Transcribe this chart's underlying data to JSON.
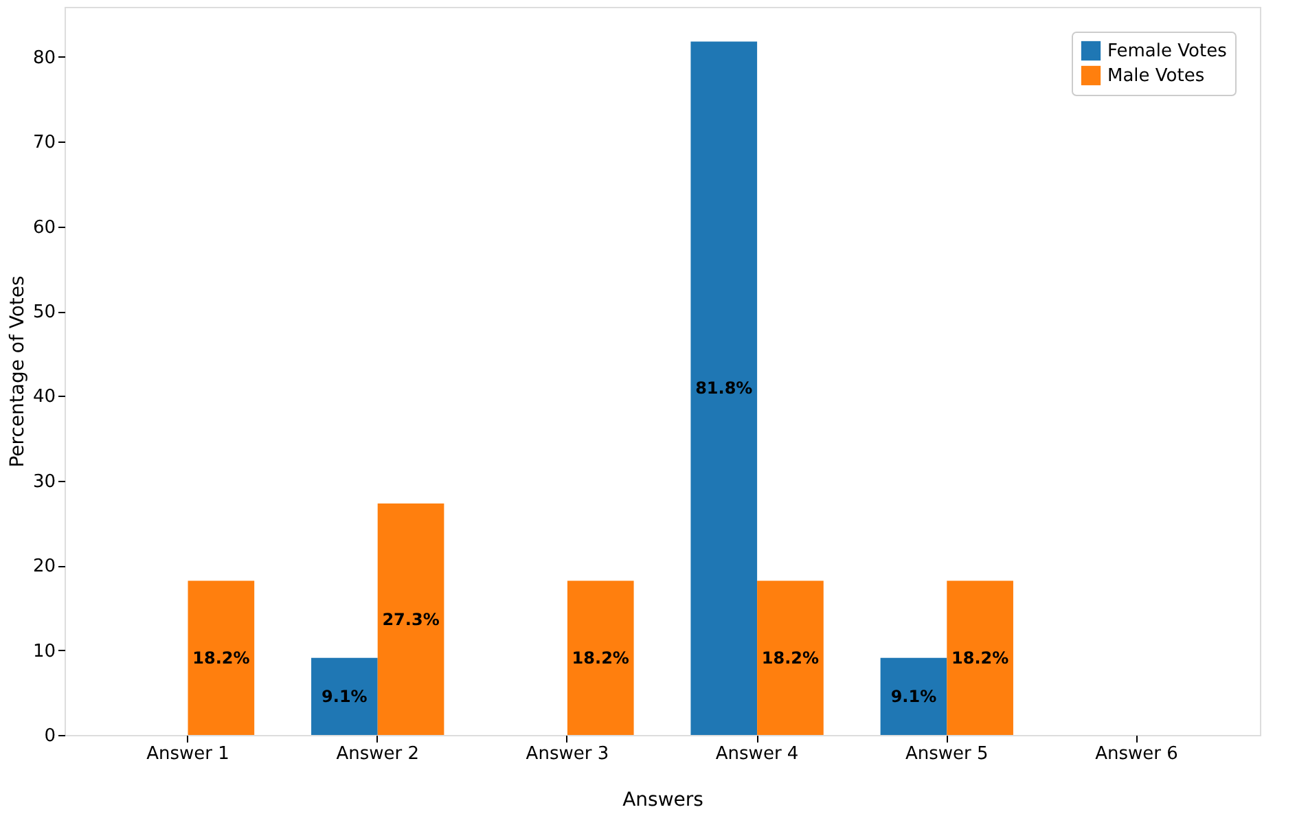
{
  "chart_data": {
    "type": "bar",
    "xlabel": "Answers",
    "ylabel": "Percentage of Votes",
    "categories": [
      "Answer 1",
      "Answer 2",
      "Answer 3",
      "Answer 4",
      "Answer 5",
      "Answer 6"
    ],
    "series": [
      {
        "name": "Female Votes",
        "color": "#1f77b4",
        "values": [
          0,
          9.1,
          0,
          81.8,
          9.1,
          0
        ],
        "value_labels": [
          null,
          "9.1%",
          null,
          "81.8%",
          "9.1%",
          null
        ]
      },
      {
        "name": "Male Votes",
        "color": "#ff7f0e",
        "values": [
          18.2,
          27.3,
          18.2,
          18.2,
          18.2,
          0
        ],
        "value_labels": [
          "18.2%",
          "27.3%",
          "18.2%",
          "18.2%",
          "18.2%",
          null
        ]
      }
    ],
    "ylim": [
      0,
      85.9
    ],
    "yticks": [
      0,
      10,
      20,
      30,
      40,
      50,
      60,
      70,
      80
    ],
    "grid": false,
    "legend": "top right"
  }
}
